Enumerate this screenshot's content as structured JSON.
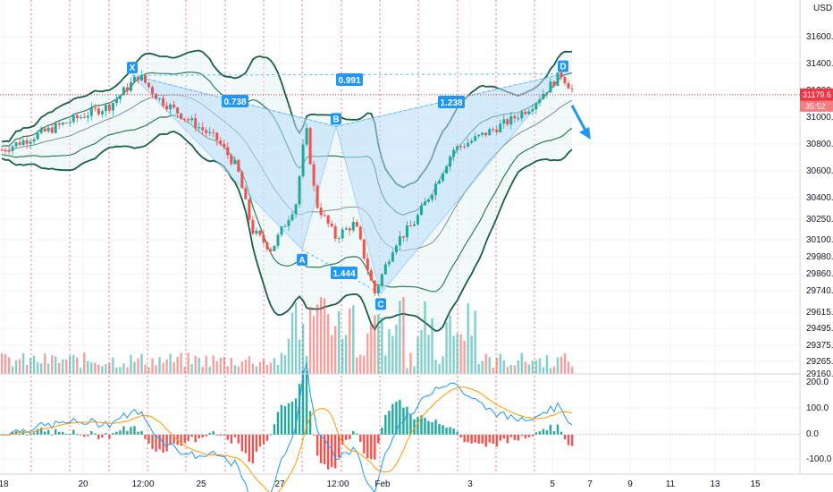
{
  "chart_data": {
    "type": "candlestick",
    "currency_label": "USD",
    "price_axis": {
      "ticks": [
        "31600.0",
        "31400.0",
        "31200.0",
        "31000.0",
        "30800.0",
        "30600.0",
        "30400.0",
        "30250.0",
        "30100.0",
        "29980.0",
        "29860.0",
        "29740.0",
        "29615.0",
        "29495.0",
        "29375.0",
        "29265.0",
        "29160.0"
      ],
      "ylim": [
        29160,
        31800
      ]
    },
    "time_axis": {
      "labels": [
        "18",
        "20",
        "12:00",
        "25",
        "27",
        "12:00",
        "Feb",
        "3",
        "5",
        "7",
        "9",
        "11",
        "13",
        "15"
      ]
    },
    "last_price": {
      "value": "31179.6",
      "countdown": "35:52",
      "value_num": 31179.6
    },
    "harmonic_pattern": {
      "points": [
        {
          "label": "X",
          "price": 31320
        },
        {
          "label": "A",
          "price": 30060
        },
        {
          "label": "B",
          "price": 30950
        },
        {
          "label": "C",
          "price": 29740
        },
        {
          "label": "D",
          "price": 31330
        }
      ],
      "ratios": [
        {
          "label": "0.738",
          "leg": "XA-B"
        },
        {
          "label": "1.444",
          "leg": "AB-C"
        },
        {
          "label": "0.991",
          "leg": "XA-D"
        },
        {
          "label": "1.238",
          "leg": "BC-D"
        }
      ]
    },
    "oscillator": {
      "ticks": [
        "200.0",
        "100.0",
        "0.0",
        "-100.0"
      ],
      "ylim": [
        -150,
        230
      ]
    },
    "colors": {
      "up": "#26a69a",
      "down": "#ef5350",
      "band": "#1b5e46",
      "pattern_fill": "#bbdefb",
      "pattern_line": "#64b5f6",
      "label_bg": "#2196f3",
      "price_line": "#f23645",
      "arrow": "#2196f3",
      "macd": "#2196f3",
      "signal": "#ff9800",
      "session_line": "#f23645"
    }
  }
}
